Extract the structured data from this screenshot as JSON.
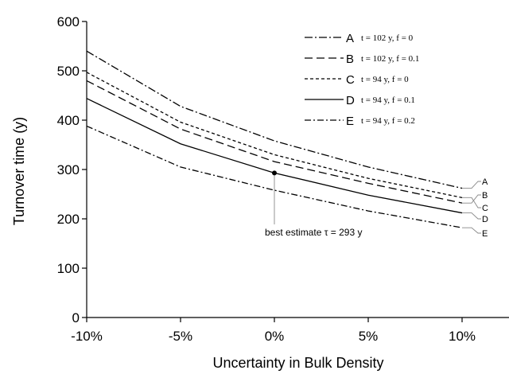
{
  "chart_data": {
    "type": "line",
    "title": "",
    "xlabel": "Uncertainty in Bulk Density",
    "ylabel": "Turnover time (y)",
    "x": [
      -10,
      -5,
      0,
      5,
      10
    ],
    "xtick_labels": [
      "-10%",
      "-5%",
      "0%",
      "5%",
      "10%"
    ],
    "xlim": [
      -10,
      12.5
    ],
    "ylim": [
      0,
      600
    ],
    "yticks": [
      0,
      100,
      200,
      300,
      400,
      500,
      600
    ],
    "ytick_labels": [
      "0",
      "100",
      "200",
      "300",
      "400",
      "500",
      "600"
    ],
    "grid": false,
    "legend_position": "top-right",
    "series": [
      {
        "name": "A",
        "desc": "t = 102 y, f = 0",
        "values": [
          540,
          428,
          358,
          305,
          262
        ],
        "dash": "10,3,2,3",
        "color": "#000000"
      },
      {
        "name": "B",
        "desc": "t = 102 y, f = 0.1",
        "values": [
          480,
          382,
          316,
          272,
          232
        ],
        "dash": "10,5",
        "color": "#000000"
      },
      {
        "name": "C",
        "desc": "t = 94 y, f = 0",
        "values": [
          497,
          396,
          330,
          282,
          243
        ],
        "dash": "4,3",
        "color": "#000000"
      },
      {
        "name": "D",
        "desc": "t = 94 y, f = 0.1",
        "values": [
          444,
          352,
          293,
          248,
          212
        ],
        "dash": "",
        "color": "#000000"
      },
      {
        "name": "E",
        "desc": "t = 94 y, f = 0.2",
        "values": [
          388,
          305,
          258,
          216,
          182
        ],
        "dash": "8,3,2,3",
        "color": "#000000"
      }
    ],
    "annotations": [
      {
        "text": "best estimate τ = 293 y",
        "x": 0,
        "y": 293
      }
    ]
  }
}
